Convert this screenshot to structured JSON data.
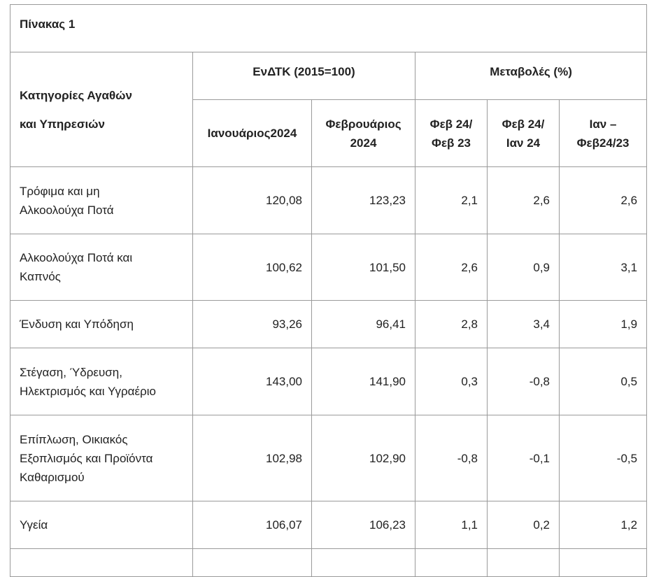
{
  "table": {
    "title": "Πίνακας 1",
    "category_header": [
      "Κατηγορίες Αγαθών",
      "και Υπηρεσιών"
    ],
    "group_index": "ΕνΔΤΚ (2015=100)",
    "group_change": "Μεταβολές (%)",
    "subheaders": [
      [
        "Ιανουάριος2024"
      ],
      [
        "Φεβρουάριος",
        "2024"
      ],
      [
        "Φεβ 24/",
        "Φεβ 23"
      ],
      [
        "Φεβ 24/",
        "Ιαν 24"
      ],
      [
        "Ιαν –",
        "Φεβ24/23"
      ]
    ],
    "rows": [
      {
        "label": [
          "Τρόφιμα και μη",
          "Αλκοολούχα Ποτά"
        ],
        "values": [
          "120,08",
          "123,23",
          "2,1",
          "2,6",
          "2,6"
        ]
      },
      {
        "label": [
          "Αλκοολούχα Ποτά και",
          "Καπνός"
        ],
        "values": [
          "100,62",
          "101,50",
          "2,6",
          "0,9",
          "3,1"
        ]
      },
      {
        "label": [
          "Ένδυση και Υπόδηση"
        ],
        "values": [
          "93,26",
          "96,41",
          "2,8",
          "3,4",
          "1,9"
        ]
      },
      {
        "label": [
          "Στέγαση, Ύδρευση,",
          "Ηλεκτρισμός και Υγραέριο"
        ],
        "values": [
          "143,00",
          "141,90",
          "0,3",
          "-0,8",
          "0,5"
        ]
      },
      {
        "label": [
          "Επίπλωση, Οικιακός",
          "Εξοπλισμός και Προϊόντα",
          "Καθαρισμού"
        ],
        "values": [
          "102,98",
          "102,90",
          "-0,8",
          "-0,1",
          "-0,5"
        ]
      },
      {
        "label": [
          "Υγεία"
        ],
        "values": [
          "106,07",
          "106,23",
          "1,1",
          "0,2",
          "1,2"
        ]
      }
    ]
  }
}
